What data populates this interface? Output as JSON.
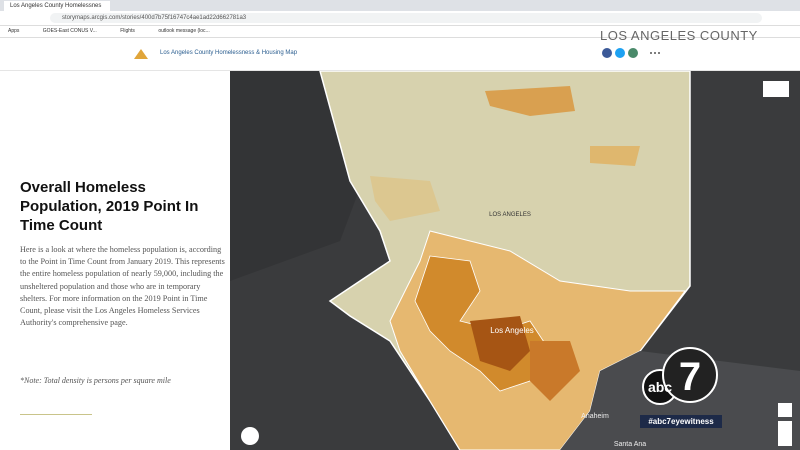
{
  "browser": {
    "tab_title": "Los Angeles County Homelessnes",
    "url": "storymaps.arcgis.com/stories/400d7b75f16747c4ae1ad22d662781a3",
    "bookmarks": [
      "Apps",
      "GOES-East CONUS V...",
      "Flights",
      "outlook message (loc..."
    ]
  },
  "header": {
    "title": "Los Angeles County Homelessness & Housing Map"
  },
  "watermark": "LOS ANGELES COUNTY",
  "panel": {
    "heading": "Overall Homeless Population, 2019 Point In Time Count",
    "body": "Here is a look at where the homeless population is, according to the Point in Time Count from January 2019. This represents the entire homeless population of nearly 59,000, including the unsheltered population and those who are in temporary shelters. For more information on the 2019 Point in Time Count, please visit the Los Angeles Homeless Services Authority's comprehensive page.",
    "note": "*Note: Total density is persons per square mile"
  },
  "map": {
    "labels": [
      "LOS ANGELES",
      "Los Angeles",
      "Anaheim",
      "Santa Ana"
    ]
  },
  "logo": {
    "brand": "abc",
    "number": "7",
    "hashtag": "#abc7eyewitness"
  }
}
